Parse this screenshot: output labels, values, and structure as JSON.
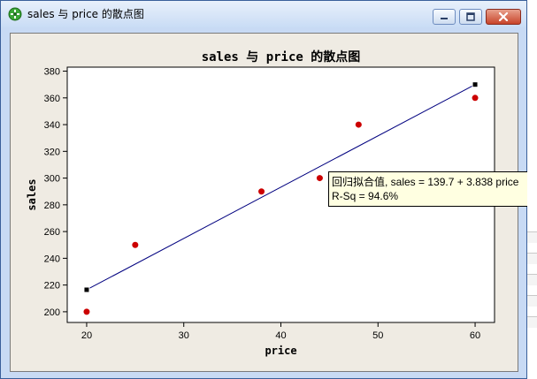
{
  "window": {
    "title": "sales 与 price 的散点图",
    "icon": "minitab-graph-icon",
    "controls": {
      "minimize": "minimize-icon",
      "maximize": "maximize-icon",
      "close": "close-icon"
    }
  },
  "chart_data": {
    "type": "scatter",
    "title": "sales 与 price 的散点图",
    "xlabel": "price",
    "ylabel": "sales",
    "xlim": [
      18,
      62
    ],
    "ylim": [
      192,
      383
    ],
    "x_ticks": [
      20,
      30,
      40,
      50,
      60
    ],
    "y_ticks": [
      200,
      220,
      240,
      260,
      280,
      300,
      320,
      340,
      360,
      380
    ],
    "points": [
      {
        "x": 20,
        "y": 200
      },
      {
        "x": 25,
        "y": 250
      },
      {
        "x": 38,
        "y": 290
      },
      {
        "x": 44,
        "y": 300
      },
      {
        "x": 48,
        "y": 340
      },
      {
        "x": 60,
        "y": 360
      }
    ],
    "point_color": "#cc0000",
    "fit_line": {
      "intercept": 139.7,
      "slope": 3.838,
      "x_range": [
        20,
        60
      ],
      "color": "#00007f",
      "endpoints_markers": true
    }
  },
  "tooltip": {
    "line1": "回归拟合值, sales =  139.7 + 3.838 price",
    "line2": "R-Sq = 94.6%"
  }
}
